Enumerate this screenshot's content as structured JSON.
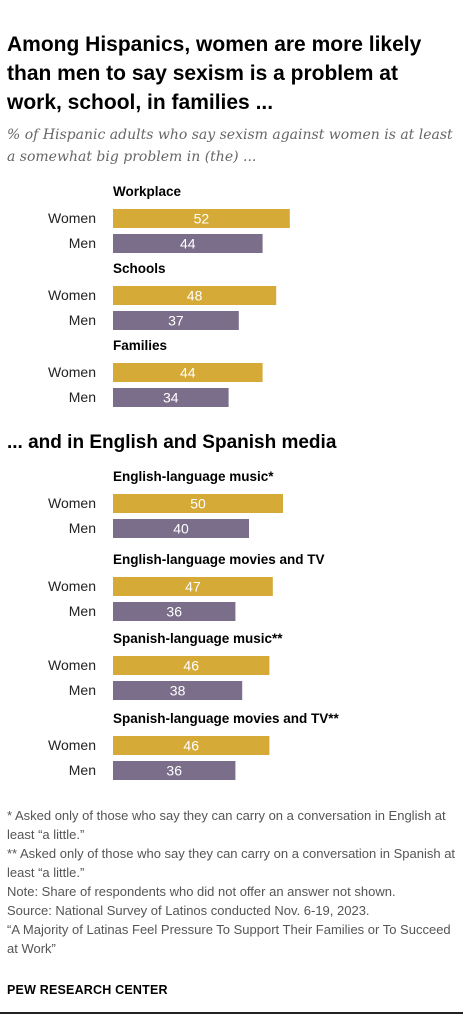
{
  "chart_data": {
    "type": "bar",
    "title": "Among Hispanics, women are more likely than men to say sexism is a problem at work, school, in families ...",
    "subtitle": "% of Hispanic adults who say sexism against women is at least a somewhat big problem in (the) ...",
    "section_title": "... and in English and Spanish media",
    "series": [
      {
        "name": "Women",
        "color": "#D6AA37"
      },
      {
        "name": "Men",
        "color": "#7A6E8A"
      }
    ],
    "groups": [
      {
        "label": "Workplace",
        "values": [
          {
            "name": "Women",
            "value": 52
          },
          {
            "name": "Men",
            "value": 44
          }
        ]
      },
      {
        "label": "Schools",
        "values": [
          {
            "name": "Women",
            "value": 48
          },
          {
            "name": "Men",
            "value": 37
          }
        ]
      },
      {
        "label": "Families",
        "values": [
          {
            "name": "Women",
            "value": 44
          },
          {
            "name": "Men",
            "value": 34
          }
        ]
      },
      {
        "label": "English-language music*",
        "values": [
          {
            "name": "Women",
            "value": 50
          },
          {
            "name": "Men",
            "value": 40
          }
        ]
      },
      {
        "label": "English-language movies and TV",
        "values": [
          {
            "name": "Women",
            "value": 47
          },
          {
            "name": "Men",
            "value": 36
          }
        ]
      },
      {
        "label": "Spanish-language music**",
        "values": [
          {
            "name": "Women",
            "value": 46
          },
          {
            "name": "Men",
            "value": 38
          }
        ]
      },
      {
        "label": "Spanish-language movies and TV**",
        "values": [
          {
            "name": "Women",
            "value": 46
          },
          {
            "name": "Men",
            "value": 36
          }
        ]
      }
    ],
    "xlim": [
      0,
      100
    ],
    "grid": false,
    "legend": "none"
  },
  "notes": {
    "note1": "* Asked only of those who say they can carry on a conversation in English at least “a little.”",
    "note2": "** Asked only of those who say they can carry on a conversation in Spanish at least “a little.”",
    "note3": "Note: Share of respondents who did not offer an answer not shown.",
    "source": "Source: National Survey of Latinos conducted Nov. 6-19, 2023.",
    "report": "“A Majority of Latinas Feel Pressure To Support Their Families or To Succeed at Work”"
  },
  "org": "PEW RESEARCH CENTER"
}
